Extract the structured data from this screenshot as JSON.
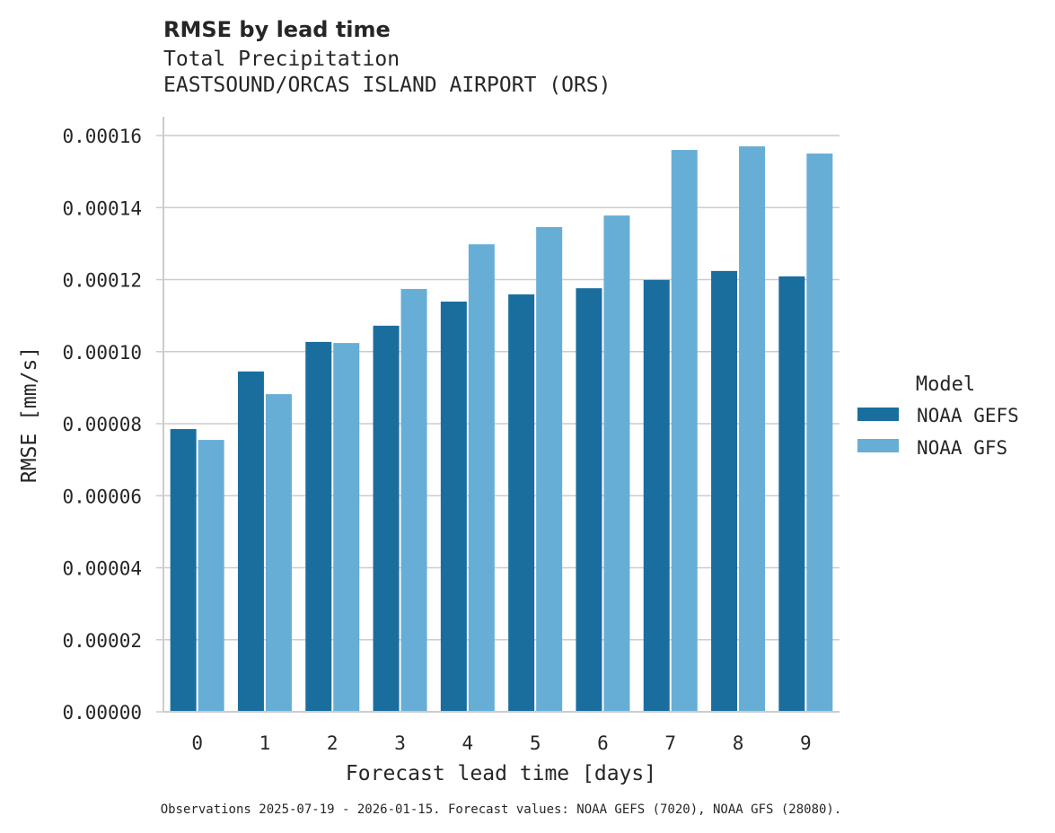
{
  "chart_data": {
    "type": "bar",
    "title": "RMSE by lead time",
    "subtitle_lines": [
      "Total Precipitation",
      "EASTSOUND/ORCAS ISLAND AIRPORT (ORS)"
    ],
    "xlabel": "Forecast lead time [days]",
    "ylabel": "RMSE [mm/s]",
    "categories": [
      "0",
      "1",
      "2",
      "3",
      "4",
      "5",
      "6",
      "7",
      "8",
      "9"
    ],
    "ylim": [
      0,
      0.000165
    ],
    "yticks": [
      "0.00000",
      "0.00002",
      "0.00004",
      "0.00006",
      "0.00008",
      "0.00010",
      "0.00012",
      "0.00014",
      "0.00016"
    ],
    "ytick_values": [
      0,
      2e-05,
      4e-05,
      6e-05,
      8e-05,
      0.0001,
      0.00012,
      0.00014,
      0.00016
    ],
    "grid": "horizontal",
    "legend": {
      "title": "Model",
      "placement": "right"
    },
    "series": [
      {
        "name": "NOAA GEFS",
        "color": "#1a6e9e",
        "values": [
          7.85e-05,
          9.45e-05,
          0.0001027,
          0.0001072,
          0.0001139,
          0.0001159,
          0.0001176,
          0.0001199,
          0.0001224,
          0.0001209
        ]
      },
      {
        "name": "NOAA GFS",
        "color": "#67aed6",
        "values": [
          7.55e-05,
          8.82e-05,
          0.0001024,
          0.0001174,
          0.0001298,
          0.0001346,
          0.0001378,
          0.000156,
          0.000157,
          0.000155
        ]
      }
    ],
    "footnote": "Observations 2025-07-19 - 2026-01-15. Forecast values: NOAA GEFS (7020), NOAA GFS (28080)."
  }
}
